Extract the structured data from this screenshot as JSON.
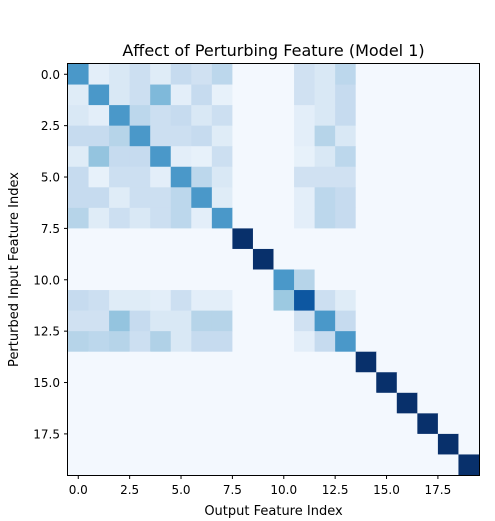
{
  "chart_data": {
    "type": "heatmap",
    "title": "Affect of Perturbing Feature (Model 1)",
    "xlabel": "Output Feature Index",
    "ylabel": "Perturbed Input Feature Index",
    "rows": 20,
    "cols": 20,
    "colormap": "Blues",
    "vmin": 0,
    "vmax": 1,
    "xticks": [
      0,
      2.5,
      5,
      7.5,
      10,
      12.5,
      15,
      17.5
    ],
    "yticks": [
      0,
      2.5,
      5,
      7.5,
      10,
      12.5,
      15,
      17.5
    ],
    "xtick_labels": [
      "0.0",
      "2.5",
      "5.0",
      "7.5",
      "10.0",
      "12.5",
      "15.0",
      "17.5"
    ],
    "ytick_labels": [
      "0.0",
      "2.5",
      "5.0",
      "7.5",
      "10.0",
      "12.5",
      "15.0",
      "17.5"
    ],
    "grid": false,
    "values": [
      [
        0.6,
        0.1,
        0.15,
        0.22,
        0.12,
        0.25,
        0.2,
        0.28,
        0.02,
        0.02,
        0.02,
        0.2,
        0.15,
        0.28,
        0.02,
        0.02,
        0.02,
        0.02,
        0.02,
        0.02
      ],
      [
        0.12,
        0.6,
        0.15,
        0.22,
        0.45,
        0.1,
        0.25,
        0.08,
        0.02,
        0.02,
        0.02,
        0.2,
        0.15,
        0.25,
        0.02,
        0.02,
        0.02,
        0.02,
        0.02,
        0.02
      ],
      [
        0.15,
        0.1,
        0.6,
        0.28,
        0.22,
        0.25,
        0.15,
        0.22,
        0.02,
        0.02,
        0.02,
        0.1,
        0.15,
        0.25,
        0.02,
        0.02,
        0.02,
        0.02,
        0.02,
        0.02
      ],
      [
        0.25,
        0.25,
        0.3,
        0.6,
        0.22,
        0.22,
        0.25,
        0.12,
        0.02,
        0.02,
        0.02,
        0.1,
        0.3,
        0.15,
        0.02,
        0.02,
        0.02,
        0.02,
        0.02,
        0.02
      ],
      [
        0.12,
        0.4,
        0.25,
        0.25,
        0.6,
        0.1,
        0.08,
        0.22,
        0.02,
        0.02,
        0.02,
        0.08,
        0.15,
        0.28,
        0.02,
        0.02,
        0.02,
        0.02,
        0.02,
        0.02
      ],
      [
        0.25,
        0.08,
        0.22,
        0.22,
        0.1,
        0.6,
        0.28,
        0.15,
        0.02,
        0.02,
        0.02,
        0.2,
        0.2,
        0.2,
        0.02,
        0.02,
        0.02,
        0.02,
        0.02,
        0.02
      ],
      [
        0.25,
        0.25,
        0.12,
        0.22,
        0.22,
        0.28,
        0.6,
        0.12,
        0.02,
        0.02,
        0.02,
        0.1,
        0.28,
        0.25,
        0.02,
        0.02,
        0.02,
        0.02,
        0.02,
        0.02
      ],
      [
        0.3,
        0.12,
        0.22,
        0.15,
        0.22,
        0.28,
        0.1,
        0.6,
        0.02,
        0.02,
        0.02,
        0.1,
        0.28,
        0.25,
        0.02,
        0.02,
        0.02,
        0.02,
        0.02,
        0.02
      ],
      [
        0.02,
        0.02,
        0.02,
        0.02,
        0.02,
        0.02,
        0.02,
        0.02,
        1.0,
        0.02,
        0.02,
        0.02,
        0.02,
        0.02,
        0.02,
        0.02,
        0.02,
        0.02,
        0.02,
        0.02
      ],
      [
        0.02,
        0.02,
        0.02,
        0.02,
        0.02,
        0.02,
        0.02,
        0.02,
        0.02,
        1.0,
        0.02,
        0.02,
        0.02,
        0.02,
        0.02,
        0.02,
        0.02,
        0.02,
        0.02,
        0.02
      ],
      [
        0.02,
        0.02,
        0.02,
        0.02,
        0.02,
        0.02,
        0.02,
        0.02,
        0.02,
        0.02,
        0.6,
        0.3,
        0.02,
        0.02,
        0.02,
        0.02,
        0.02,
        0.02,
        0.02,
        0.02
      ],
      [
        0.25,
        0.22,
        0.12,
        0.12,
        0.1,
        0.22,
        0.1,
        0.1,
        0.02,
        0.02,
        0.38,
        0.85,
        0.22,
        0.12,
        0.02,
        0.02,
        0.02,
        0.02,
        0.02,
        0.02
      ],
      [
        0.2,
        0.2,
        0.4,
        0.25,
        0.15,
        0.15,
        0.3,
        0.3,
        0.02,
        0.02,
        0.02,
        0.2,
        0.6,
        0.25,
        0.02,
        0.02,
        0.02,
        0.02,
        0.02,
        0.02
      ],
      [
        0.3,
        0.28,
        0.3,
        0.22,
        0.32,
        0.15,
        0.25,
        0.25,
        0.02,
        0.02,
        0.02,
        0.1,
        0.25,
        0.6,
        0.02,
        0.02,
        0.02,
        0.02,
        0.02,
        0.02
      ],
      [
        0.02,
        0.02,
        0.02,
        0.02,
        0.02,
        0.02,
        0.02,
        0.02,
        0.02,
        0.02,
        0.02,
        0.02,
        0.02,
        0.02,
        1.0,
        0.02,
        0.02,
        0.02,
        0.02,
        0.02
      ],
      [
        0.02,
        0.02,
        0.02,
        0.02,
        0.02,
        0.02,
        0.02,
        0.02,
        0.02,
        0.02,
        0.02,
        0.02,
        0.02,
        0.02,
        0.02,
        1.0,
        0.02,
        0.02,
        0.02,
        0.02
      ],
      [
        0.02,
        0.02,
        0.02,
        0.02,
        0.02,
        0.02,
        0.02,
        0.02,
        0.02,
        0.02,
        0.02,
        0.02,
        0.02,
        0.02,
        0.02,
        0.02,
        1.0,
        0.02,
        0.02,
        0.02
      ],
      [
        0.02,
        0.02,
        0.02,
        0.02,
        0.02,
        0.02,
        0.02,
        0.02,
        0.02,
        0.02,
        0.02,
        0.02,
        0.02,
        0.02,
        0.02,
        0.02,
        0.02,
        1.0,
        0.02,
        0.02
      ],
      [
        0.02,
        0.02,
        0.02,
        0.02,
        0.02,
        0.02,
        0.02,
        0.02,
        0.02,
        0.02,
        0.02,
        0.02,
        0.02,
        0.02,
        0.02,
        0.02,
        0.02,
        0.02,
        1.0,
        0.02
      ],
      [
        0.02,
        0.02,
        0.02,
        0.02,
        0.02,
        0.02,
        0.02,
        0.02,
        0.02,
        0.02,
        0.02,
        0.02,
        0.02,
        0.02,
        0.02,
        0.02,
        0.02,
        0.02,
        0.02,
        1.0
      ]
    ]
  }
}
